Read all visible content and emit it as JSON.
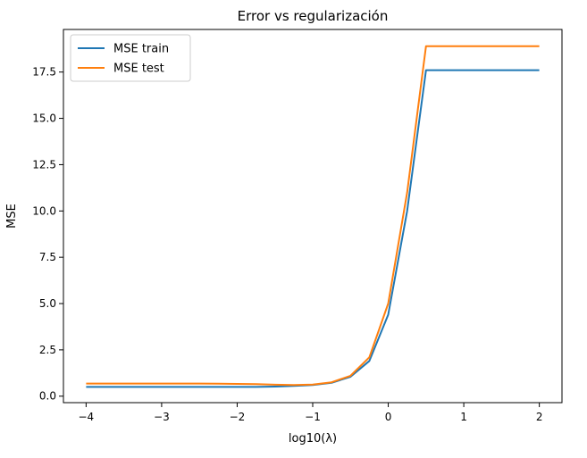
{
  "chart_data": {
    "type": "line",
    "title": "Error vs regularización",
    "xlabel": "log10(λ)",
    "ylabel": "MSE",
    "xlim": [
      -4.3,
      2.3
    ],
    "ylim": [
      -0.35,
      19.8
    ],
    "xticks": [
      -4,
      -3,
      -2,
      -1,
      0,
      1,
      2
    ],
    "yticks": [
      0.0,
      2.5,
      5.0,
      7.5,
      10.0,
      12.5,
      15.0,
      17.5
    ],
    "grid": false,
    "legend_position": "top-left",
    "series": [
      {
        "name": "MSE train",
        "color": "#1f77b4",
        "x": [
          -4,
          -3.75,
          -3.5,
          -3.25,
          -3,
          -2.75,
          -2.5,
          -2.25,
          -2,
          -1.75,
          -1.5,
          -1.25,
          -1,
          -0.75,
          -0.5,
          -0.25,
          0,
          0.25,
          0.5,
          0.75,
          1,
          1.25,
          1.5,
          1.75,
          2
        ],
        "y": [
          0.5,
          0.5,
          0.5,
          0.5,
          0.5,
          0.5,
          0.5,
          0.5,
          0.5,
          0.5,
          0.52,
          0.55,
          0.6,
          0.72,
          1.05,
          1.9,
          4.4,
          10.0,
          17.6,
          17.6,
          17.6,
          17.6,
          17.6,
          17.6,
          17.6
        ]
      },
      {
        "name": "MSE test",
        "color": "#ff7f0e",
        "x": [
          -4,
          -3.75,
          -3.5,
          -3.25,
          -3,
          -2.75,
          -2.5,
          -2.25,
          -2,
          -1.75,
          -1.5,
          -1.25,
          -1,
          -0.75,
          -0.5,
          -0.25,
          0,
          0.25,
          0.5,
          0.75,
          1,
          1.25,
          1.5,
          1.75,
          2
        ],
        "y": [
          0.68,
          0.68,
          0.68,
          0.68,
          0.68,
          0.68,
          0.68,
          0.67,
          0.66,
          0.65,
          0.62,
          0.6,
          0.63,
          0.75,
          1.1,
          2.1,
          5.0,
          11.0,
          18.9,
          18.9,
          18.9,
          18.9,
          18.9,
          18.9,
          18.9
        ]
      }
    ]
  }
}
